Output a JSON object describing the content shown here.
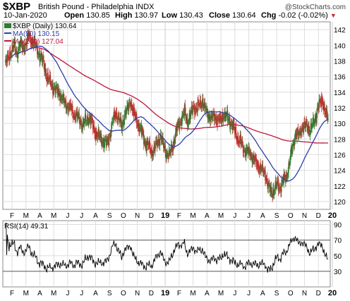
{
  "header": {
    "symbol": "$XBP",
    "description": "British Pound - Philadelphia INDX",
    "brand": "@StockCharts.com",
    "date": "10-Jan-2020",
    "open_label": "Open",
    "open_value": "130.85",
    "high_label": "High",
    "high_value": "130.97",
    "low_label": "Low",
    "low_value": "130.43",
    "close_label": "Close",
    "close_value": "130.64",
    "chg_label": "Chg",
    "chg_value": "-0.02 (-0.02%)",
    "chg_arrow": "▼"
  },
  "legend": {
    "price": "$XBP (Daily) 130.64",
    "ma50": "MA(50) 130.15",
    "ma200": "MA(200) 127.04",
    "rsi": "RSI(14) 49.31"
  },
  "colors": {
    "up_candle": "#2e7d32",
    "down_candle": "#c62828",
    "ma50": "#2d3fa8",
    "ma200": "#c0143c",
    "rsi_line": "#000000",
    "grid": "#dddddd"
  },
  "chart_data": [
    {
      "type": "candlestick",
      "y_axis_side": "right",
      "ylim": [
        119,
        143
      ],
      "y_ticks": [
        120,
        122,
        124,
        126,
        128,
        130,
        132,
        134,
        136,
        138,
        140,
        142
      ],
      "x_ticks": [
        "F",
        "M",
        "A",
        "M",
        "J",
        "J",
        "A",
        "S",
        "O",
        "N",
        "D",
        "19",
        "F",
        "M",
        "A",
        "M",
        "J",
        "J",
        "A",
        "S",
        "O",
        "N",
        "D",
        "20"
      ],
      "grid": true,
      "weekly_closes": [
        137.5,
        138.3,
        139.3,
        139.8,
        139.0,
        140.1,
        139.7,
        140.2,
        141.2,
        140.6,
        140.1,
        139.2,
        138.4,
        137.6,
        135.9,
        135.3,
        134.7,
        134.2,
        134.0,
        133.2,
        132.5,
        132.2,
        131.9,
        131.2,
        131.0,
        130.4,
        129.8,
        130.3,
        130.8,
        130.1,
        129.0,
        128.4,
        128.1,
        127.6,
        127.4,
        128.5,
        130.2,
        131.4,
        130.6,
        129.5,
        131.2,
        131.8,
        132.9,
        131.2,
        130.4,
        129.4,
        128.6,
        127.4,
        127.1,
        126.3,
        126.8,
        127.6,
        128.4,
        127.0,
        126.2,
        125.9,
        127.1,
        128.6,
        129.9,
        130.6,
        131.4,
        130.2,
        131.0,
        132.2,
        131.8,
        132.4,
        132.9,
        131.6,
        131.1,
        130.6,
        130.9,
        130.5,
        130.3,
        131.2,
        130.8,
        130.4,
        129.7,
        128.8,
        127.9,
        127.4,
        126.6,
        126.3,
        126.2,
        125.4,
        124.9,
        124.4,
        123.9,
        123.6,
        121.8,
        121.2,
        121.5,
        122.2,
        121.8,
        122.7,
        123.2,
        124.7,
        126.9,
        128.6,
        128.4,
        129.4,
        129.5,
        129.9,
        128.9,
        130.1,
        131.1,
        132.4,
        133.2,
        131.2,
        130.64
      ],
      "series": [
        {
          "name": "$XBP (Daily)",
          "last": 130.64
        },
        {
          "name": "MA(50)",
          "last": 130.15
        },
        {
          "name": "MA(200)",
          "last": 127.04
        }
      ]
    },
    {
      "type": "line",
      "name": "RSI(14)",
      "ylim": [
        10,
        95
      ],
      "y_ticks": [
        30,
        50,
        70,
        90
      ],
      "reference_lines": [
        30,
        70
      ],
      "x_ticks": [
        "F",
        "M",
        "A",
        "M",
        "J",
        "J",
        "A",
        "S",
        "O",
        "N",
        "D",
        "19",
        "F",
        "M",
        "A",
        "M",
        "J",
        "J",
        "A",
        "S",
        "O",
        "N",
        "D",
        "20"
      ],
      "last": 49.31
    }
  ]
}
